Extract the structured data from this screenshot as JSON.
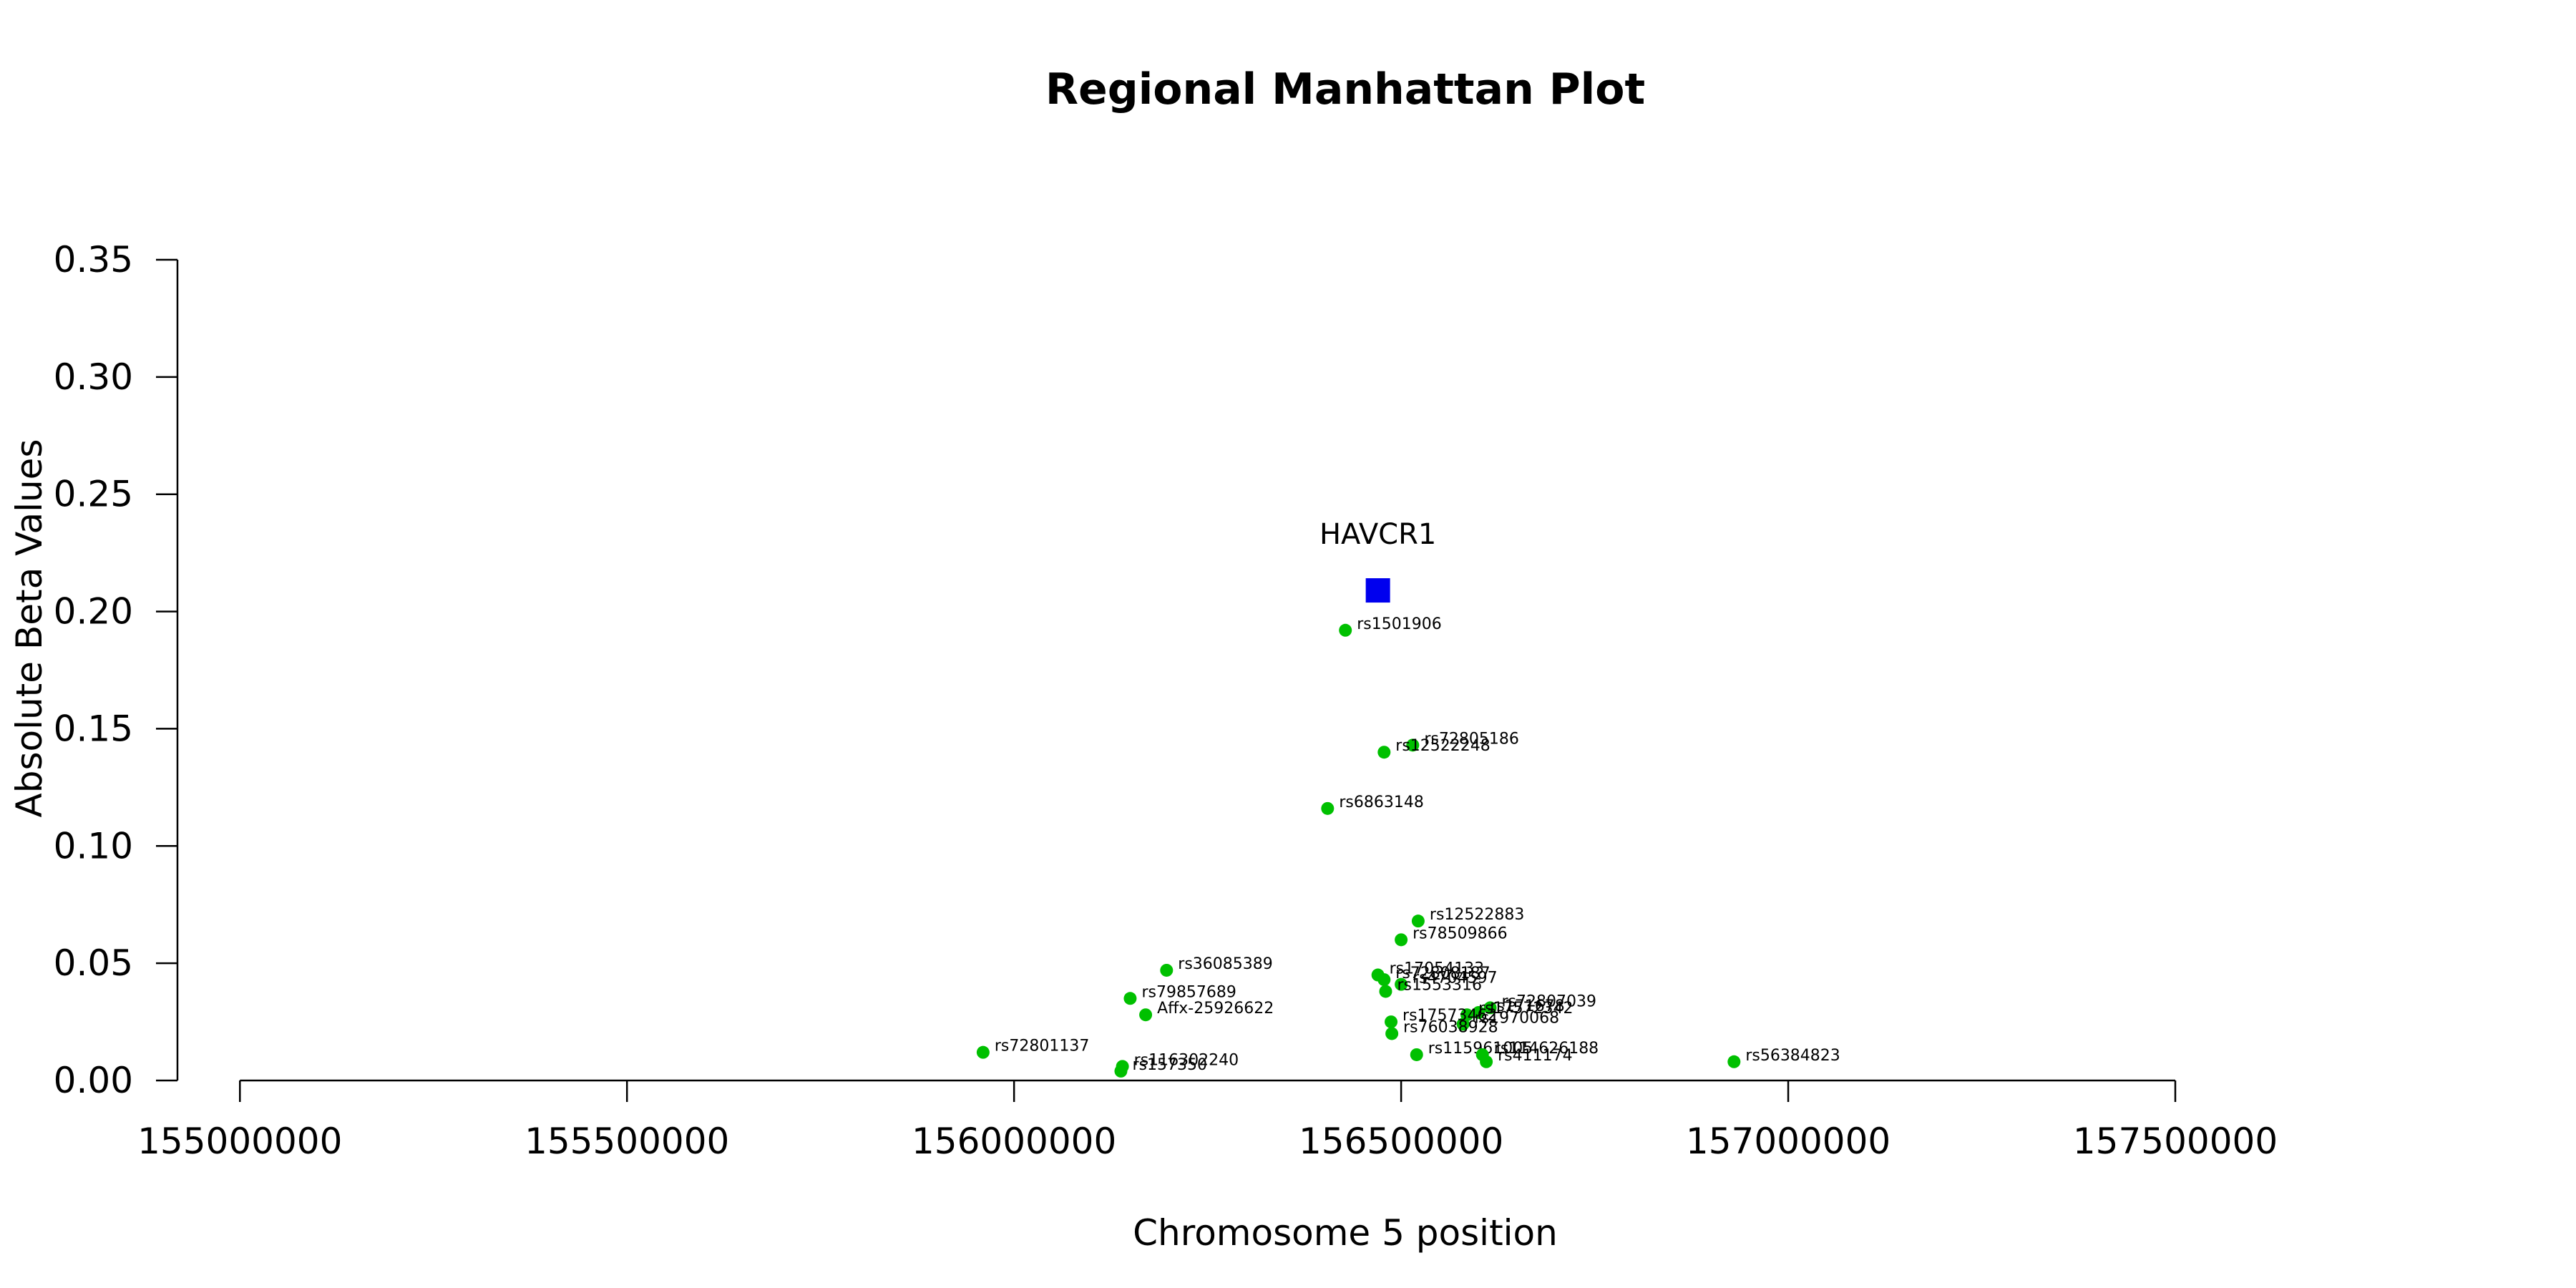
{
  "chart_data": {
    "type": "scatter",
    "title": "Regional Manhattan Plot",
    "xlabel": "Chromosome 5 position",
    "ylabel": "Absolute Beta Values",
    "xlim": [
      154960000,
      157500000
    ],
    "ylim": [
      0,
      0.35
    ],
    "x_ticks": [
      "155000000",
      "155500000",
      "156000000",
      "156500000",
      "157000000",
      "157500000"
    ],
    "y_ticks": [
      "0.00",
      "0.05",
      "0.10",
      "0.15",
      "0.20",
      "0.25",
      "0.30",
      "0.35"
    ],
    "grid": false,
    "gene": {
      "name": "HAVCR1",
      "x": 156470000,
      "y": 0.209,
      "color": "#0000ee"
    },
    "snp_color": "#00c000",
    "snps": [
      {
        "label": "rs1501906",
        "x": 156428000,
        "y": 0.192
      },
      {
        "label": "rs72805186",
        "x": 156515000,
        "y": 0.143
      },
      {
        "label": "rs12522248",
        "x": 156478000,
        "y": 0.14
      },
      {
        "label": "rs6863148",
        "x": 156405000,
        "y": 0.116
      },
      {
        "label": "rs12522883",
        "x": 156522000,
        "y": 0.068
      },
      {
        "label": "rs78509866",
        "x": 156500000,
        "y": 0.06
      },
      {
        "label": "rs36085389",
        "x": 156197000,
        "y": 0.047
      },
      {
        "label": "rs17054133",
        "x": 156470000,
        "y": 0.045
      },
      {
        "label": "rs72808187",
        "x": 156478000,
        "y": 0.043
      },
      {
        "label": "rs4704597",
        "x": 156500000,
        "y": 0.041
      },
      {
        "label": "rs1553316",
        "x": 156480000,
        "y": 0.038
      },
      {
        "label": "rs79857689",
        "x": 156150000,
        "y": 0.035
      },
      {
        "label": "rs72807039",
        "x": 156615000,
        "y": 0.031
      },
      {
        "label": "rs171678",
        "x": 156600000,
        "y": 0.029
      },
      {
        "label": "rs17572342",
        "x": 156585000,
        "y": 0.028
      },
      {
        "label": "Affx-25926622",
        "x": 156170000,
        "y": 0.028
      },
      {
        "label": "rs1970068",
        "x": 156580000,
        "y": 0.024
      },
      {
        "label": "rs17573462",
        "x": 156487000,
        "y": 0.025
      },
      {
        "label": "rs76038928",
        "x": 156488000,
        "y": 0.02
      },
      {
        "label": "rs72801137",
        "x": 155960000,
        "y": 0.012
      },
      {
        "label": "rs115961005",
        "x": 156520000,
        "y": 0.011
      },
      {
        "label": "rs114626188",
        "x": 156605000,
        "y": 0.011
      },
      {
        "label": "rs411174",
        "x": 156610000,
        "y": 0.008
      },
      {
        "label": "rs56384823",
        "x": 156930000,
        "y": 0.008
      },
      {
        "label": "rs116302240",
        "x": 156140000,
        "y": 0.006
      },
      {
        "label": "rs157350",
        "x": 156138000,
        "y": 0.004
      }
    ]
  }
}
